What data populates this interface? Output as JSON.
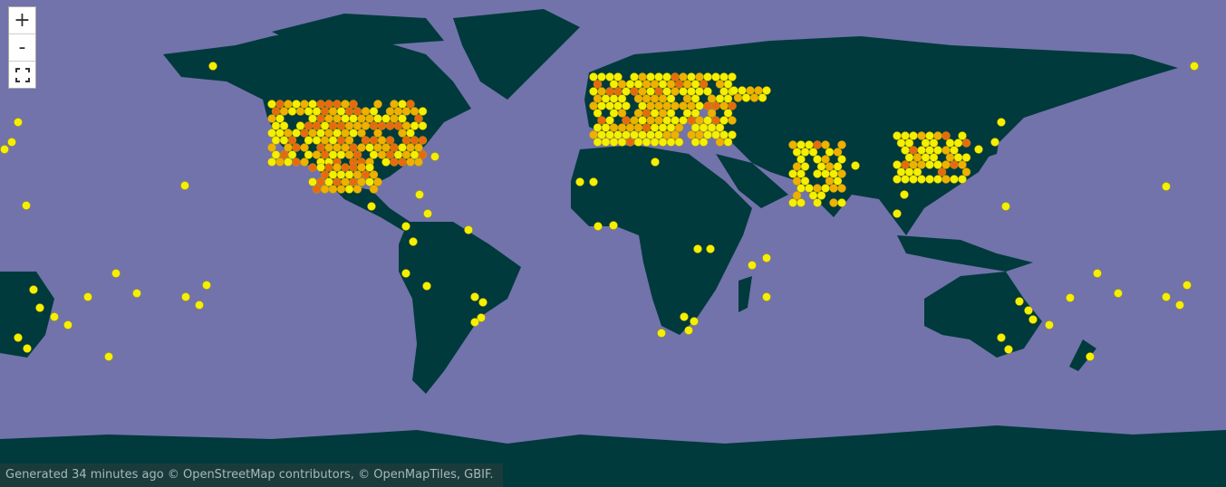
{
  "map": {
    "colors": {
      "ocean": "#7273ab",
      "land": "#003a3c",
      "low": "#f4f000",
      "mid": "#f0b000",
      "high": "#e86a10"
    }
  },
  "controls": {
    "zoom_in": "+",
    "zoom_out": "-",
    "fullscreen_icon": "fullscreen-icon"
  },
  "attribution": "Generated 34 minutes ago © OpenStreetMap contributors, © OpenMapTiles, GBIF."
}
